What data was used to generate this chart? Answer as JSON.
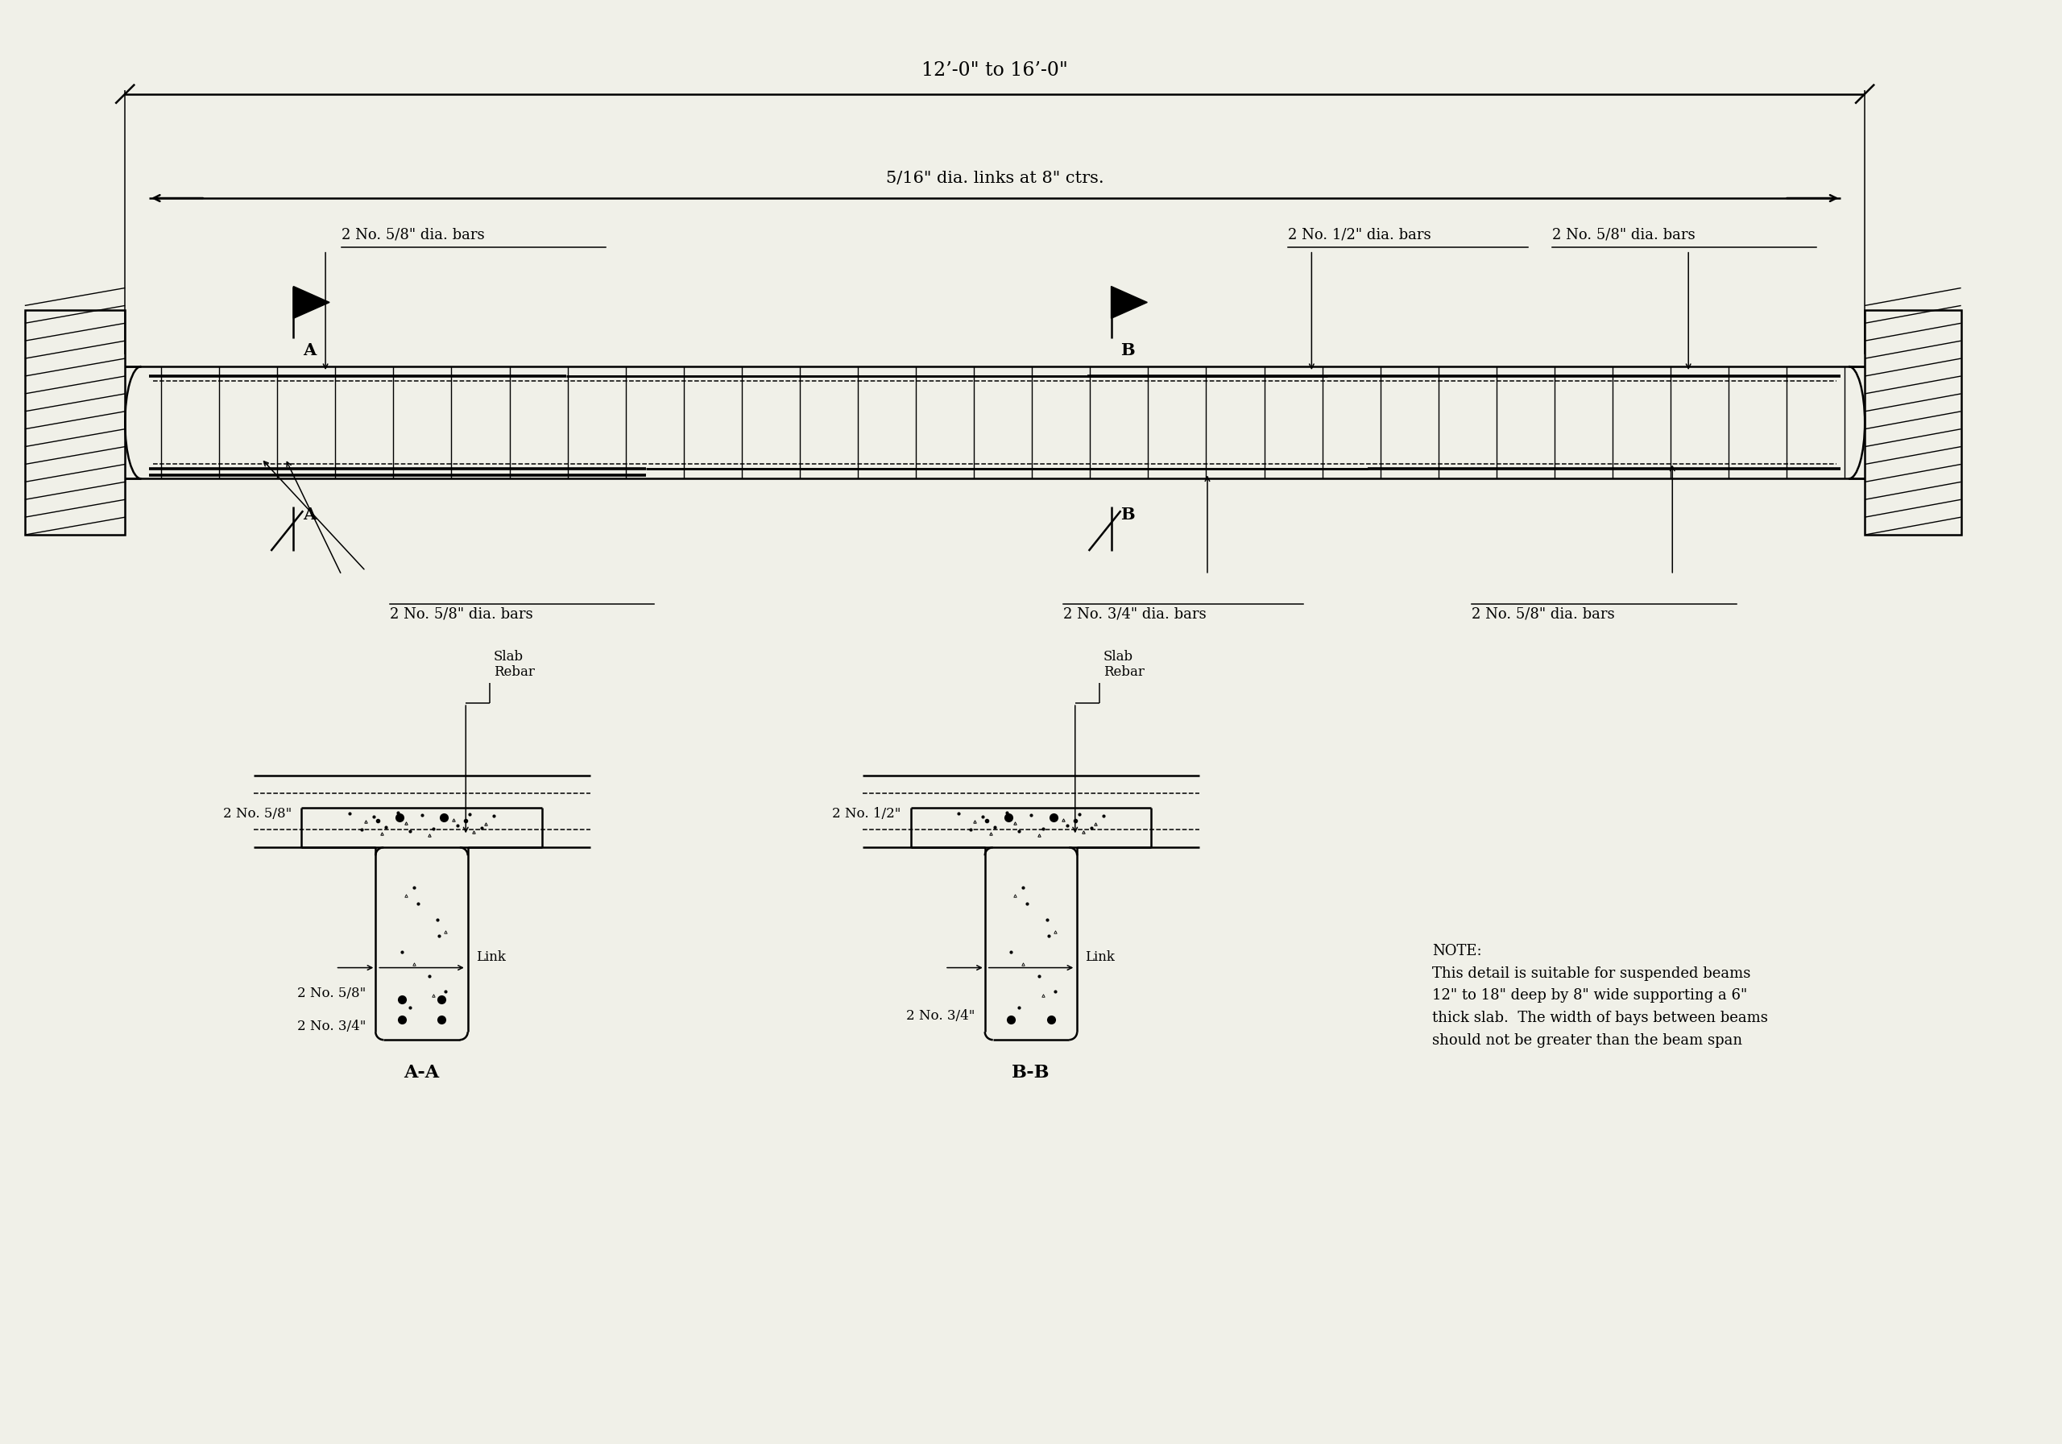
{
  "bg_color": "#f0f0e8",
  "line_color": "#000000",
  "title_dim": "12’-0\" to 16’-0\"",
  "link_label": "5/16\" dia. links at 8\" ctrs.",
  "top_bar_left": "2 No. 5/8\" dia. bars",
  "top_bar_mid": "2 No. 1/2\" dia. bars",
  "top_bar_right": "2 No. 5/8\" dia. bars",
  "bot_bar_left": "2 No. 5/8\" dia. bars",
  "bot_bar_mid": "2 No. 3/4\" dia. bars",
  "bot_bar_right": "2 No. 5/8\" dia. bars",
  "label_A": "A",
  "label_B": "B",
  "section_AA": "A-A",
  "section_BB": "B-B",
  "sec_top_A": "2 No. 5/8\"",
  "sec_top_B": "2 No. 1/2\"",
  "sec_bot_A1": "2 No. 5/8\"",
  "sec_bot_A2": "2 No. 3/4\"",
  "sec_bot_B": "2 No. 3/4\"",
  "link_label_sec": "Link",
  "slab_rebar": "Slab\nRebar",
  "note_text": "NOTE:\nThis detail is suitable for suspended beams\n12\" to 18\" deep by 8\" wide supporting a 6\"\nthick slab.  The width of bays between beams\nshould not be greater than the beam span"
}
